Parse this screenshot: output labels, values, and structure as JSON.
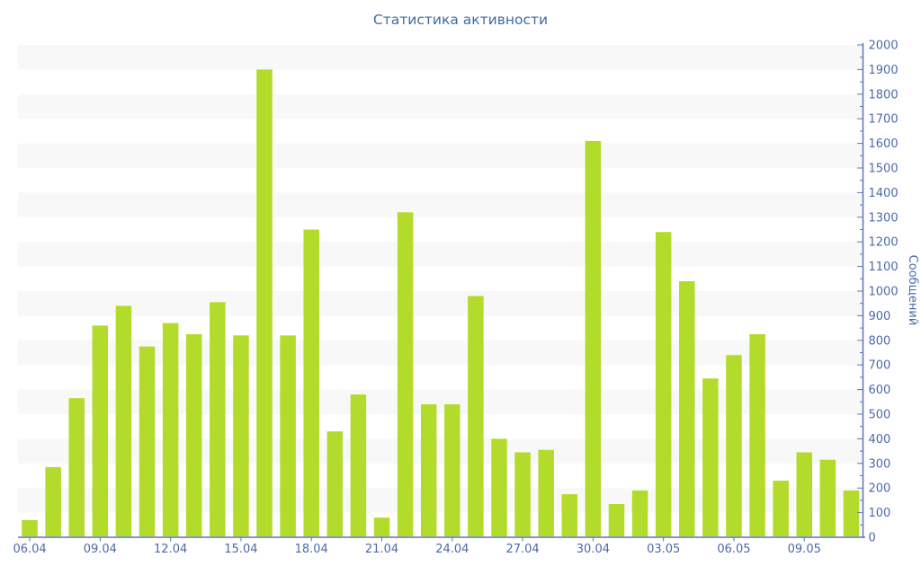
{
  "title": "Статистика активности",
  "chart_data": {
    "type": "bar",
    "title": "Статистика активности",
    "xlabel": "",
    "ylabel": "Сообщений",
    "x": [
      "06.04",
      "07.04",
      "08.04",
      "09.04",
      "10.04",
      "11.04",
      "12.04",
      "13.04",
      "14.04",
      "15.04",
      "16.04",
      "17.04",
      "18.04",
      "19.04",
      "20.04",
      "21.04",
      "22.04",
      "23.04",
      "24.04",
      "25.04",
      "26.04",
      "27.04",
      "28.04",
      "29.04",
      "30.04",
      "01.05",
      "02.05",
      "03.05",
      "04.05",
      "05.05",
      "06.05",
      "07.05",
      "08.05",
      "09.05",
      "10.05",
      "11.05"
    ],
    "values": [
      70,
      285,
      565,
      860,
      940,
      775,
      870,
      825,
      955,
      820,
      1900,
      820,
      1250,
      430,
      580,
      80,
      1320,
      540,
      540,
      980,
      400,
      345,
      355,
      175,
      1610,
      135,
      190,
      1240,
      1040,
      645,
      740,
      825,
      230,
      345,
      315,
      190
    ],
    "x_tick_labels": [
      "06.04",
      "09.04",
      "12.04",
      "15.04",
      "18.04",
      "21.04",
      "24.04",
      "27.04",
      "30.04",
      "03.05",
      "06.05",
      "09.05"
    ],
    "x_label_every": 3,
    "ylim": [
      0,
      2000
    ],
    "y_tick_step": 100,
    "y_minor_tick_step": 50,
    "y_axis_side": "right",
    "grid": "alternating-horizontal-stripes-per-100",
    "legend": "none",
    "colors": {
      "bar": "#b2db2b",
      "stripe": "#f8f8f8",
      "axis_line": "#5b76b4",
      "tick_text": "#4b6aa9",
      "title_text": "#3f6aa6",
      "background": "#ffffff"
    }
  }
}
